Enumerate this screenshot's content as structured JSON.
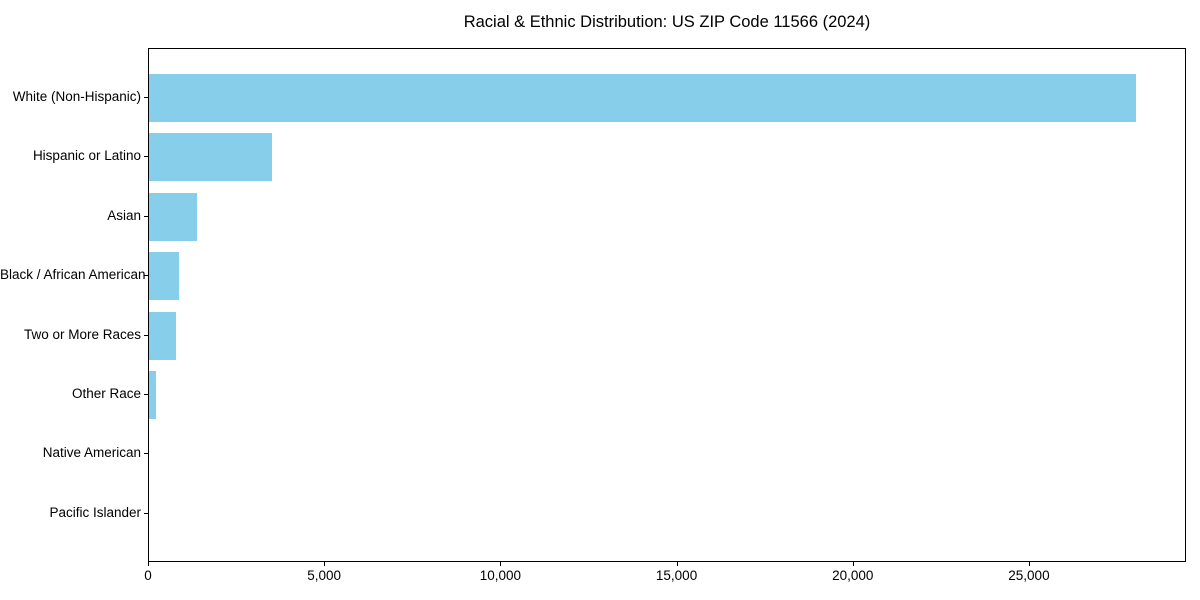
{
  "chart_data": {
    "type": "bar",
    "orientation": "horizontal",
    "title": "Racial & Ethnic Distribution: US ZIP Code 11566 (2024)",
    "categories": [
      "White (Non-Hispanic)",
      "Hispanic or Latino",
      "Asian",
      "Black / African American",
      "Two or More Races",
      "Other Race",
      "Native American",
      "Pacific Islander"
    ],
    "values": [
      28000,
      3500,
      1350,
      840,
      780,
      200,
      0,
      0
    ],
    "xlabel": "",
    "ylabel": "",
    "xlim": [
      0,
      29400
    ],
    "x_ticks": [
      0,
      5000,
      10000,
      15000,
      20000,
      25000
    ],
    "x_tick_labels": [
      "0",
      "5,000",
      "10,000",
      "15,000",
      "20,000",
      "25,000"
    ],
    "bar_color": "#87CEEB",
    "background_color": "#ffffff",
    "spine_color": "#000000",
    "grid": false,
    "legend": null
  }
}
